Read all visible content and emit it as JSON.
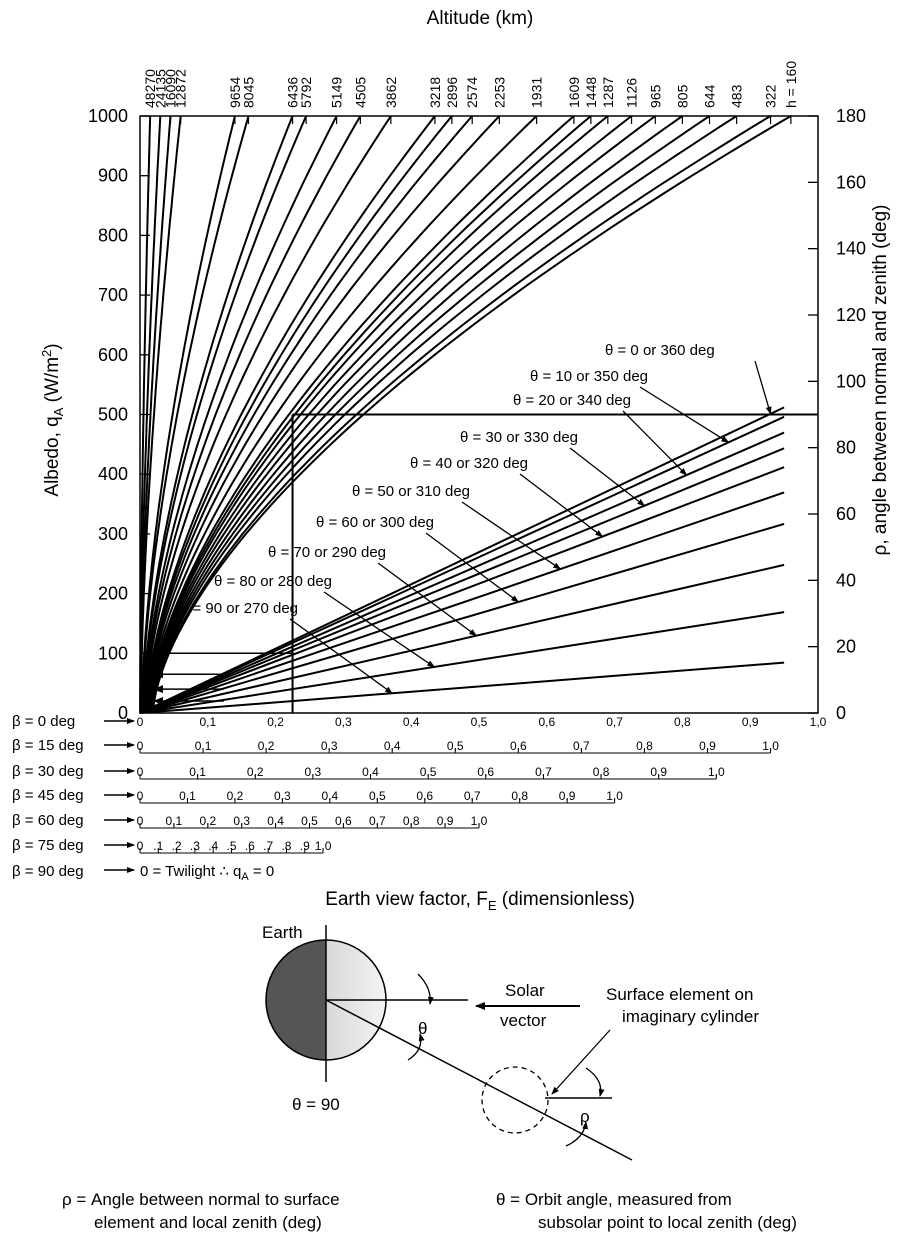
{
  "chart_data": {
    "type": "line",
    "title": "Altitude (km)",
    "xlabel": "Earth view factor, F_E (dimensionless)",
    "xlabel_main": "Earth view factor, F",
    "xlabel_sub": "E",
    "xlabel_tail": " (dimensionless)",
    "ylabel_left_main": "Albedo, q",
    "ylabel_left_sub": "A",
    "ylabel_left_tail": " (W/m",
    "ylabel_left_sup": "2",
    "ylabel_left_close": ")",
    "ylabel_right": "ρ, angle between normal and zenith (deg)",
    "ylim_left": [
      0,
      1000
    ],
    "ylim_right": [
      0,
      180
    ],
    "xlim": [
      0,
      1.0
    ],
    "x_ticks": [
      "0",
      "0.1",
      "0.2",
      "0.3",
      "0.4",
      "0.5",
      "0.6",
      "0.7",
      "0.8",
      "0.9",
      "1.0"
    ],
    "y_left_ticks": [
      "0",
      "100",
      "200",
      "300",
      "400",
      "500",
      "600",
      "700",
      "800",
      "900",
      "1000"
    ],
    "y_right_ticks": [
      "0",
      "20",
      "40",
      "60",
      "80",
      "100",
      "120",
      "140",
      "160",
      "180"
    ],
    "altitude_ticks": [
      {
        "label": "48270",
        "fe": 0.015
      },
      {
        "label": "24135",
        "fe": 0.03
      },
      {
        "label": "16090",
        "fe": 0.045
      },
      {
        "label": "12872",
        "fe": 0.06
      },
      {
        "label": "9654",
        "fe": 0.14
      },
      {
        "label": "8045",
        "fe": 0.16
      },
      {
        "label": "6436",
        "fe": 0.225
      },
      {
        "label": "5792",
        "fe": 0.245
      },
      {
        "label": "5149",
        "fe": 0.29
      },
      {
        "label": "4505",
        "fe": 0.325
      },
      {
        "label": "3862",
        "fe": 0.37
      },
      {
        "label": "3218",
        "fe": 0.435
      },
      {
        "label": "2896",
        "fe": 0.46
      },
      {
        "label": "2574",
        "fe": 0.49
      },
      {
        "label": "2253",
        "fe": 0.53
      },
      {
        "label": "1931",
        "fe": 0.585
      },
      {
        "label": "1609",
        "fe": 0.64
      },
      {
        "label": "1448",
        "fe": 0.665
      },
      {
        "label": "1287",
        "fe": 0.69
      },
      {
        "label": "1126",
        "fe": 0.725
      },
      {
        "label": "965",
        "fe": 0.76
      },
      {
        "label": "805",
        "fe": 0.8
      },
      {
        "label": "644",
        "fe": 0.84
      },
      {
        "label": "483",
        "fe": 0.88
      },
      {
        "label": "322",
        "fe": 0.93
      },
      {
        "label": "h = 160",
        "fe": 0.96
      }
    ],
    "theta_series": [
      {
        "name": "θ = 0 or 360 deg",
        "rho_at_fe1": 97
      },
      {
        "name": "θ = 10 or 350 deg",
        "rho_at_fe1": 94
      },
      {
        "name": "θ = 20 or 340 deg",
        "rho_at_fe1": 89
      },
      {
        "name": "θ = 30 or 330 deg",
        "rho_at_fe1": 84
      },
      {
        "name": "θ = 40 or 320 deg",
        "rho_at_fe1": 78
      },
      {
        "name": "θ = 50 or 310 deg",
        "rho_at_fe1": 70
      },
      {
        "name": "θ = 60 or 300 deg",
        "rho_at_fe1": 60
      },
      {
        "name": "θ = 70 or 290 deg",
        "rho_at_fe1": 47
      },
      {
        "name": "θ = 80 or 280 deg",
        "rho_at_fe1": 32
      },
      {
        "name": "θ = 90 or 270 deg",
        "rho_at_fe1": 16
      }
    ],
    "example_path": {
      "rho": 90,
      "fe": 0.225,
      "albedo": 100
    },
    "albedo_arrows": [
      100,
      65,
      40,
      20
    ]
  },
  "beta_scales": [
    {
      "label": "β = 0 deg",
      "ticks": [
        "0",
        "0,1",
        "0,2",
        "0,3",
        "0,4",
        "0,5",
        "0,6",
        "0,7",
        "0,8",
        "0,9",
        "1,0"
      ]
    },
    {
      "label": "β = 15 deg",
      "ticks": [
        "0",
        "0,1",
        "0,2",
        "0,3",
        "0,4",
        "0,5",
        "0,6",
        "0,7",
        "0,8",
        "0,9",
        "1,0"
      ]
    },
    {
      "label": "β = 30 deg",
      "ticks": [
        "0",
        "0,1",
        "0,2",
        "0,3",
        "0,4",
        "0,5",
        "0,6",
        "0,7",
        "0,8",
        "0,9",
        "1,0"
      ]
    },
    {
      "label": "β = 45 deg",
      "ticks": [
        "0",
        "0,1",
        "0,2",
        "0,3",
        "0,4",
        "0,5",
        "0,6",
        "0,7",
        "0,8",
        "0,9",
        "1,0"
      ]
    },
    {
      "label": "β = 60 deg",
      "ticks": [
        "0",
        "0,1",
        "0,2",
        "0,3",
        "0,4",
        "0,5",
        "0,6",
        "0,7",
        "0,8",
        "0,9",
        "1,0"
      ]
    },
    {
      "label": "β = 75 deg",
      "ticks": [
        "0",
        ".1",
        ".2",
        ".3",
        ".4",
        ".5",
        ".6",
        ".7",
        ".8",
        ".9",
        "1.0"
      ]
    }
  ],
  "beta_90": {
    "label": "β = 90 deg",
    "text": "0 = Twilight ∴ q",
    "sub": "A",
    "tail": " = 0"
  },
  "diagram": {
    "earth_label": "Earth",
    "solar_label_1": "Solar",
    "solar_label_2": "vector",
    "theta_symbol": "θ",
    "rho_symbol": "ρ",
    "theta90_label": "θ = 90",
    "surface_label_1": "Surface element on",
    "surface_label_2": "imaginary cylinder"
  },
  "notes": {
    "rho_note_1": "ρ = Angle between normal to surface",
    "rho_note_2": "element and local zenith (deg)",
    "theta_note_1": "θ = Orbit angle, measured from",
    "theta_note_2": "subsolar point to local zenith (deg)"
  }
}
